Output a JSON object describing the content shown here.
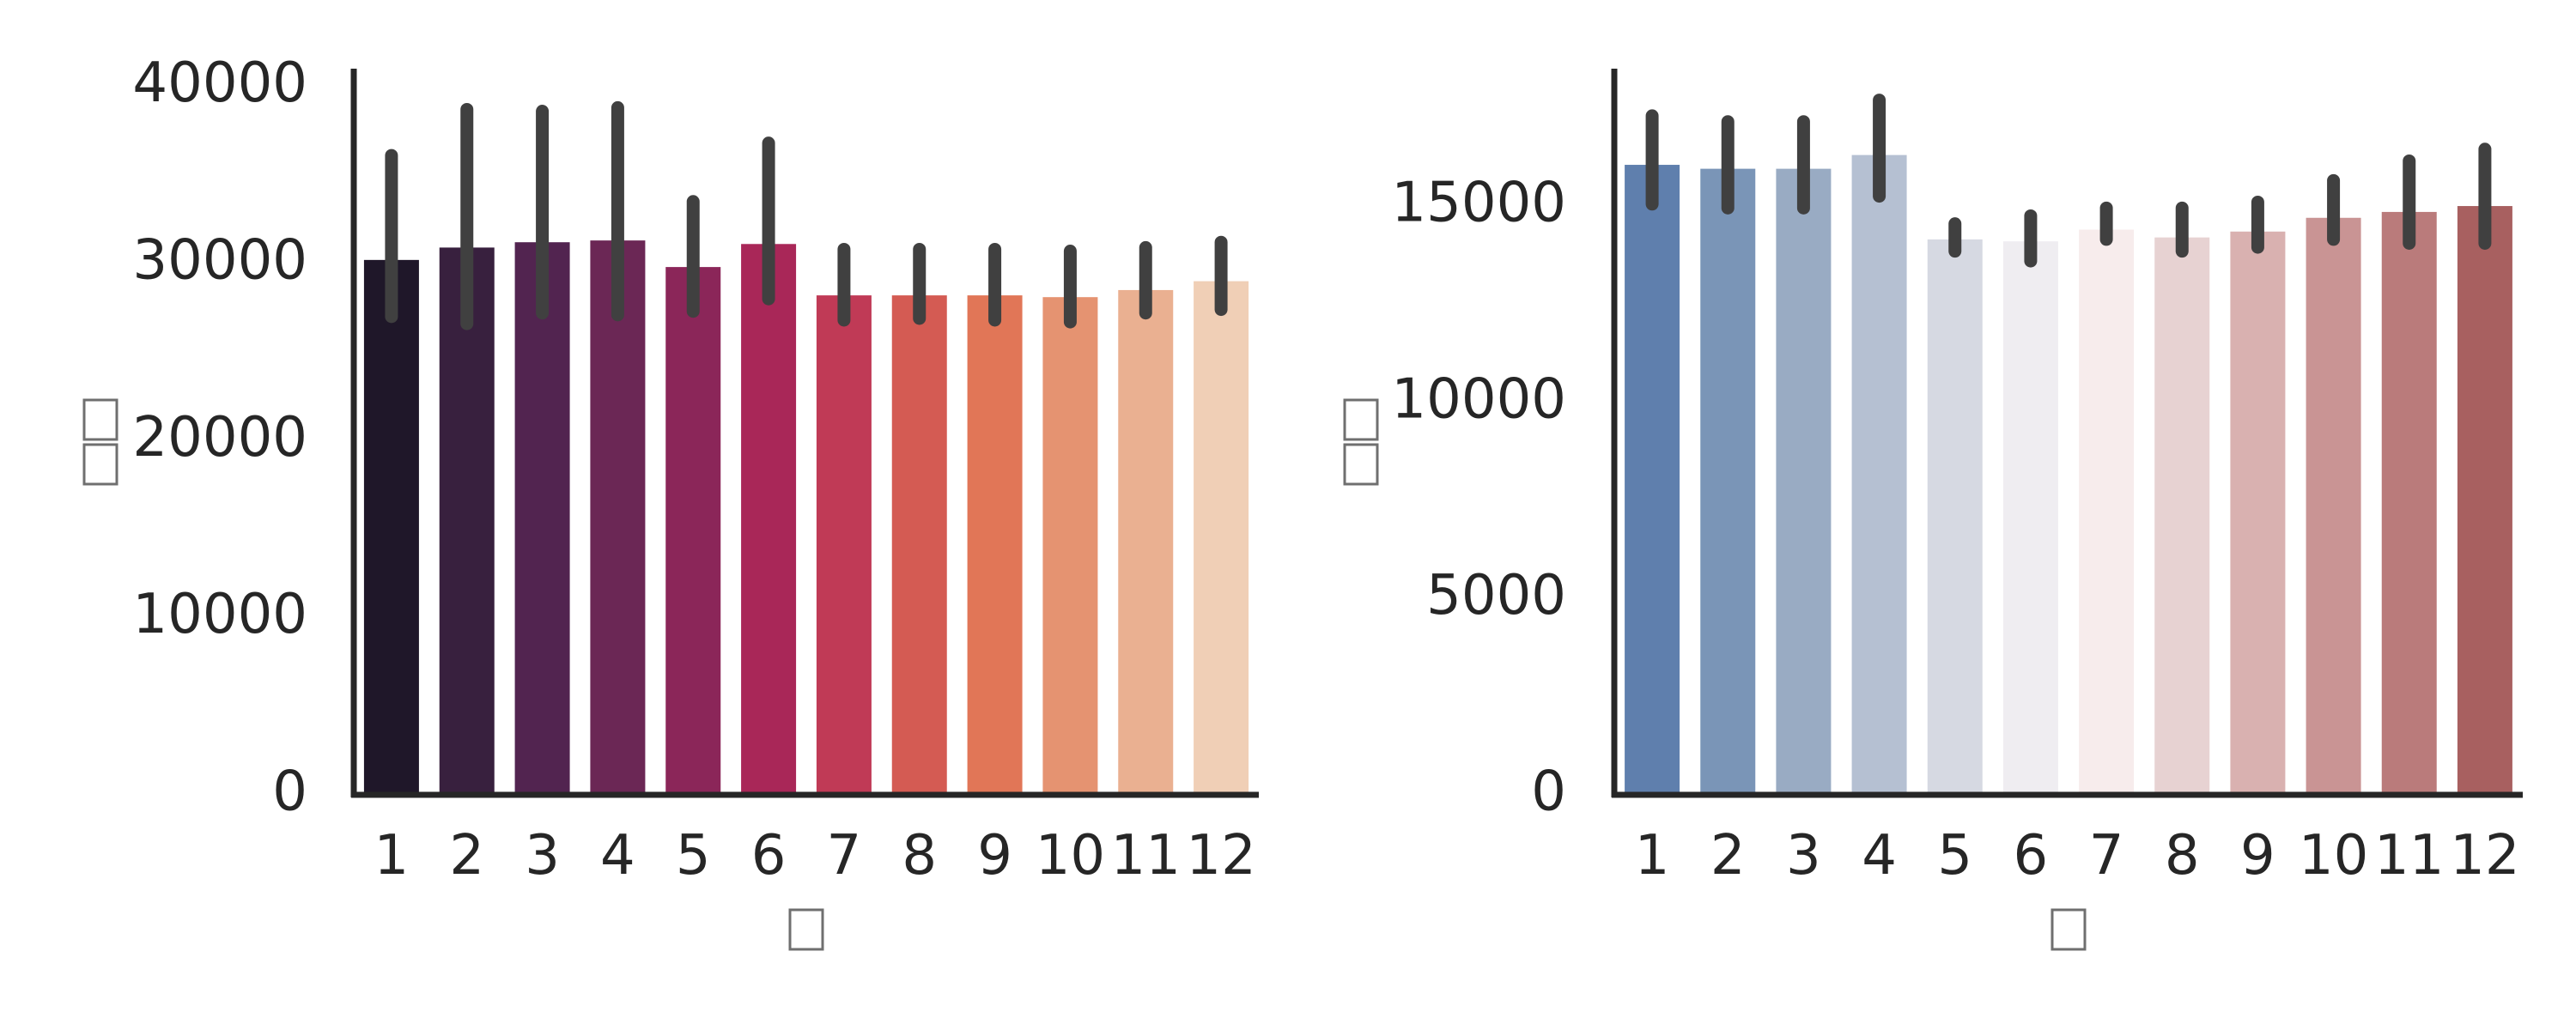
{
  "chart_data": [
    {
      "type": "bar",
      "categories": [
        "1",
        "2",
        "3",
        "4",
        "5",
        "6",
        "7",
        "8",
        "9",
        "10",
        "11",
        "12"
      ],
      "values": [
        30200,
        30900,
        31200,
        31300,
        29800,
        31100,
        28200,
        28200,
        28200,
        28100,
        28500,
        29000
      ],
      "error_low": [
        27000,
        26600,
        27200,
        27100,
        27300,
        28000,
        26800,
        26900,
        26800,
        26700,
        27200,
        27400
      ],
      "error_high": [
        36100,
        38700,
        38600,
        38800,
        33500,
        36800,
        30800,
        30800,
        30800,
        30700,
        30900,
        31200
      ],
      "ylim": [
        0,
        41000
      ],
      "yticks": [
        "0",
        "10000",
        "20000",
        "30000",
        "40000"
      ],
      "ytick_values": [
        0,
        10000,
        20000,
        30000,
        40000
      ],
      "xlabel": "",
      "ylabel": "",
      "xlabel_glyph_count": 1,
      "ylabel_glyph_count": 2,
      "colors": [
        "#1f1729",
        "#38203e",
        "#522450",
        "#6b2755",
        "#8b2659",
        "#a92758",
        "#c03a56",
        "#d45b53",
        "#e17657",
        "#e59371",
        "#eab091",
        "#f0cfb6"
      ],
      "error_color": "#404040"
    },
    {
      "type": "bar",
      "categories": [
        "1",
        "2",
        "3",
        "4",
        "5",
        "6",
        "7",
        "8",
        "9",
        "10",
        "11",
        "12"
      ],
      "values": [
        16050,
        15950,
        15950,
        16300,
        14150,
        14100,
        14400,
        14200,
        14350,
        14700,
        14850,
        15000
      ],
      "error_low": [
        15050,
        14950,
        14950,
        15250,
        13850,
        13600,
        14150,
        13850,
        13950,
        14150,
        14050,
        14050
      ],
      "error_high": [
        17300,
        17150,
        17150,
        17700,
        14550,
        14750,
        14950,
        14950,
        15100,
        15650,
        16150,
        16450
      ],
      "ylim": [
        0,
        18500
      ],
      "yticks": [
        "0",
        "5000",
        "10000",
        "15000"
      ],
      "ytick_values": [
        0,
        5000,
        10000,
        15000
      ],
      "xlabel": "",
      "ylabel": "",
      "xlabel_glyph_count": 1,
      "ylabel_glyph_count": 2,
      "colors": [
        "#5f7fad",
        "#7a95b7",
        "#99abc3",
        "#b5c0d2",
        "#d6d9e2",
        "#efedf1",
        "#f7ecec",
        "#e7d2d2",
        "#d9b1b0",
        "#c99494",
        "#ba7b7b",
        "#a86060"
      ],
      "error_color": "#404040"
    }
  ]
}
